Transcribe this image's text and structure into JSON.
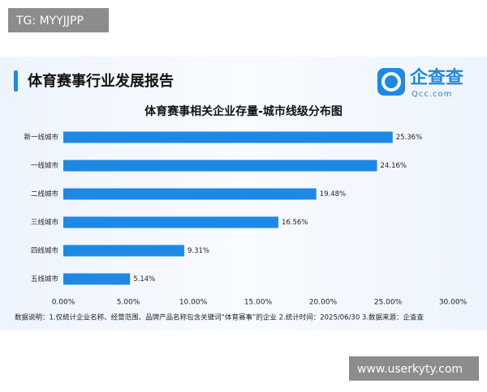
{
  "watermark_top": "TG: MYYJJPP",
  "watermark_bottom": "www.userkyty.com",
  "header": {
    "title": "体育赛事行业发展报告",
    "logo_name": "企查查",
    "logo_sub": "Qcc.com"
  },
  "footnote": "数据说明：1.仅统计企业名称、经营范围、品牌产品名称包含关键词“体育赛事”的企业  2.统计时间：2025/06/30  3.数据来源：企查查",
  "chart_data": {
    "type": "hbar",
    "title": "体育赛事相关企业存量-城市线级分布图",
    "categories": [
      "新一线城市",
      "一线城市",
      "二线城市",
      "三线城市",
      "四线城市",
      "五线城市"
    ],
    "values": [
      25.36,
      24.16,
      19.48,
      16.56,
      9.31,
      5.14
    ],
    "value_labels": [
      "25.36%",
      "24.16%",
      "19.48%",
      "16.56%",
      "9.31%",
      "5.14%"
    ],
    "color": "#1e88e5",
    "xlim": [
      0,
      30
    ],
    "xticks": [
      {
        "value": 0,
        "label": "0.00%"
      },
      {
        "value": 5,
        "label": "5.00%"
      },
      {
        "value": 10,
        "label": "10.00%"
      },
      {
        "value": 15,
        "label": "15.00%"
      },
      {
        "value": 20,
        "label": "20.00%"
      },
      {
        "value": 25,
        "label": "25.00%"
      },
      {
        "value": 30,
        "label": "30.00%"
      }
    ],
    "grid": false
  }
}
